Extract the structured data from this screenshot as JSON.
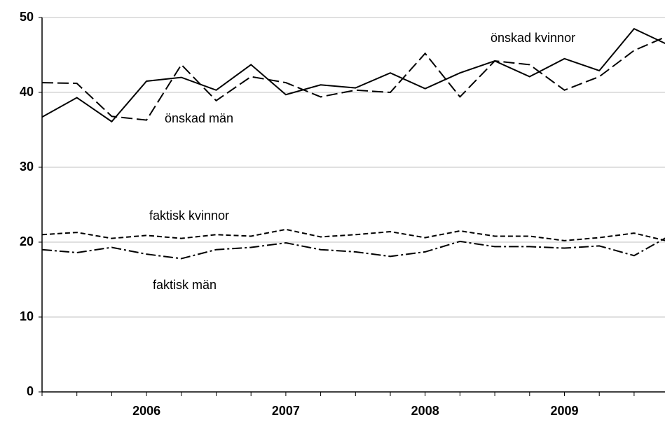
{
  "chart_data": {
    "type": "line",
    "categories": [
      null,
      null,
      null,
      "2006",
      null,
      null,
      null,
      "2007",
      null,
      null,
      null,
      "2008",
      null,
      null,
      null,
      "2009",
      null,
      null,
      null
    ],
    "series": [
      {
        "name": "önskad kvinnor",
        "color": "#000000",
        "dash": "solid",
        "values": [
          36.7,
          39.3,
          36.1,
          41.5,
          42.0,
          40.3,
          43.7,
          39.7,
          41.0,
          40.6,
          42.6,
          40.5,
          42.6,
          44.2,
          42.1,
          44.5,
          42.9,
          48.5,
          46.3
        ]
      },
      {
        "name": "önskad män",
        "color": "#000000",
        "dash": "long",
        "values": [
          41.3,
          41.2,
          36.8,
          36.3,
          43.7,
          38.9,
          42.1,
          41.3,
          39.4,
          40.3,
          40.0,
          45.2,
          39.4,
          44.2,
          43.7,
          40.3,
          42.1,
          45.6,
          47.6
        ]
      },
      {
        "name": "faktisk kvinnor",
        "color": "#000000",
        "dash": "short",
        "values": [
          21.0,
          21.3,
          20.5,
          20.9,
          20.5,
          21.0,
          20.8,
          21.7,
          20.7,
          21.0,
          21.4,
          20.6,
          21.5,
          20.8,
          20.8,
          20.2,
          20.6,
          21.2,
          20.1
        ]
      },
      {
        "name": "faktisk män",
        "color": "#000000",
        "dash": "dashdot",
        "values": [
          19.0,
          18.6,
          19.3,
          18.4,
          17.8,
          19.0,
          19.3,
          19.9,
          19.0,
          18.7,
          18.1,
          18.7,
          20.1,
          19.4,
          19.4,
          19.2,
          19.5,
          18.2,
          20.8
        ]
      }
    ],
    "ylim": [
      0,
      50
    ],
    "yticks": [
      0,
      10,
      20,
      30,
      40,
      50
    ],
    "grid": true
  }
}
